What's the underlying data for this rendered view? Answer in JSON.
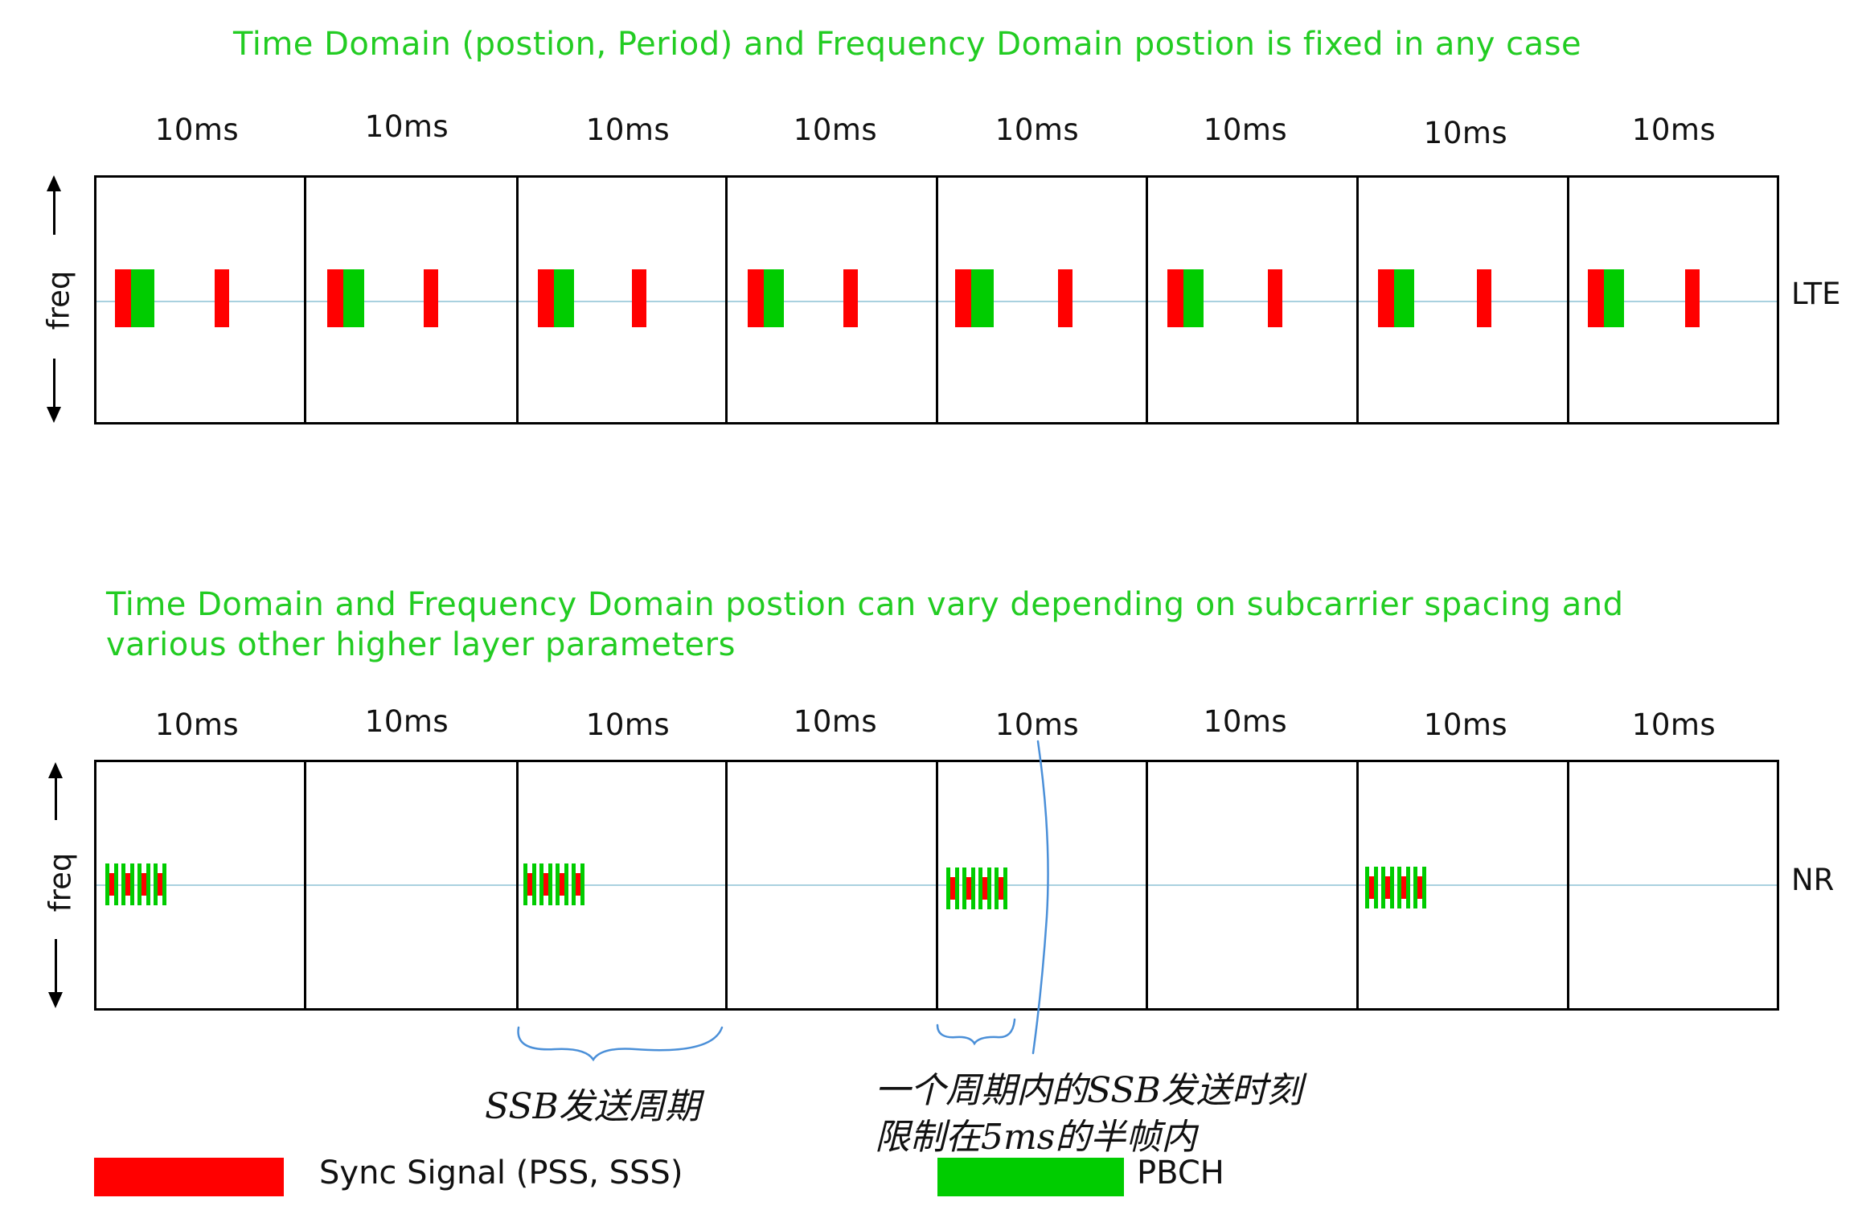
{
  "lte": {
    "title": "Time Domain (postion, Period) and Frequency Domain postion is fixed in any case",
    "frame_labels": [
      "10ms",
      "10ms",
      "10ms",
      "10ms",
      "10ms",
      "10ms",
      "10ms",
      "10ms"
    ],
    "axis_label": "freq",
    "side_label": "LTE"
  },
  "nr": {
    "title_line1": "Time Domain and Frequency Domain postion can vary depending on subcarrier spacing and",
    "title_line2": "various other higher layer parameters",
    "frame_labels": [
      "10ms",
      "10ms",
      "10ms",
      "10ms",
      "10ms",
      "10ms",
      "10ms",
      "10ms"
    ],
    "axis_label": "freq",
    "side_label": "NR"
  },
  "annotations": {
    "period_note": "SSB发送周期",
    "halfframe_note_line1": "一个周期内的SSB发送时刻",
    "halfframe_note_line2": "限制在5ms的半帧内"
  },
  "legend": {
    "sync_label": "Sync Signal (PSS, SSS)",
    "pbch_label": "PBCH"
  },
  "colors": {
    "sync": "#ff0000",
    "pbch": "#00cc00",
    "title": "#22cc22",
    "axis_line": "#a9d1df"
  }
}
